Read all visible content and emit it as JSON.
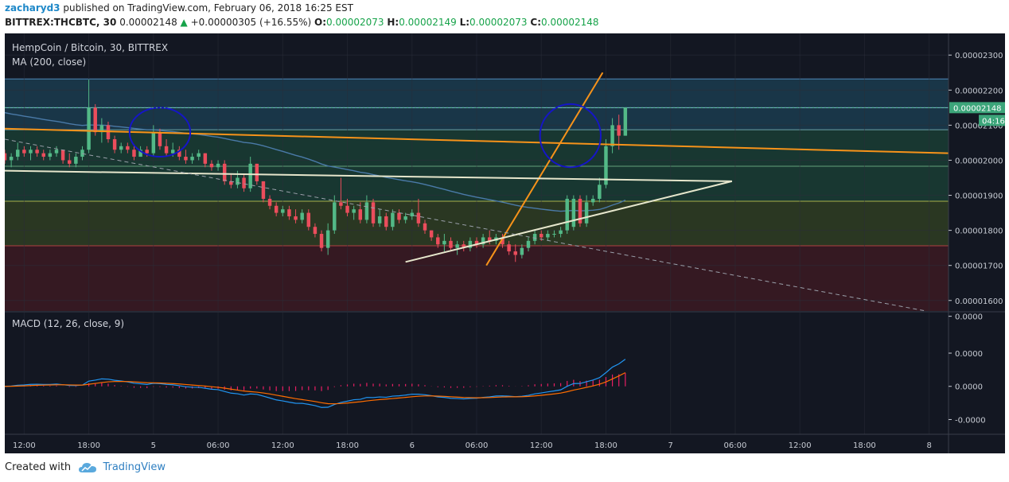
{
  "header": {
    "author": "zacharyd3",
    "published_text": "published on TradingView.com, February 06, 2018 16:25 EST",
    "symbol": "BITTREX:THCBTC, 30",
    "last": "0.00002148",
    "change": "+0.00000305 (+16.55%)",
    "o_label": "O:",
    "o_value": "0.00002073",
    "h_label": "H:",
    "h_value": "0.00002149",
    "l_label": "L:",
    "l_value": "0.00002073",
    "c_label": "C:",
    "c_value": "0.00002148"
  },
  "footer": {
    "created_with": "Created with",
    "brand": "TradingView"
  },
  "colors": {
    "bg": "#131722",
    "up": "#53b987",
    "down": "#eb4d5c",
    "ma": "#4a7aa8",
    "orange": "#f7931a",
    "white_line": "#e6e6cc",
    "circle": "#1515c8",
    "macd": "#2196f3",
    "signal": "#ff6d00",
    "hist": "#e91e63",
    "fib_top": "#1b3a4d",
    "fib_mid": "#1a3b33",
    "fib_low": "#2e3b22",
    "fib_red": "#3a1a22"
  },
  "chart_data": {
    "type": "candlestick",
    "title": "HempCoin / Bitcoin, 30, BITTREX",
    "indicator_label": "MA (200, close)",
    "macd_label": "MACD (12, 26, close, 9)",
    "last_price_label": "0.00002148",
    "countdown_label": "04:16",
    "price_axis": {
      "ylim": [
        1.57e-05,
        2.33e-05
      ],
      "ticks": [
        {
          "value": 2.3e-05,
          "label": "0.00002300"
        },
        {
          "value": 2.2e-05,
          "label": "0.00002200"
        },
        {
          "value": 2.1e-05,
          "label": "0.00002100"
        },
        {
          "value": 2e-05,
          "label": "0.00002000"
        },
        {
          "value": 1.9e-05,
          "label": "0.00001900"
        },
        {
          "value": 1.8e-05,
          "label": "0.00001800"
        },
        {
          "value": 1.7e-05,
          "label": "0.00001700"
        },
        {
          "value": 1.6e-05,
          "label": "0.00001600"
        }
      ]
    },
    "macd_axis": {
      "ylim": [
        -1.3e-06,
        2e-06
      ],
      "ticks": [
        {
          "value": 1.9e-06,
          "label": "0.0000"
        },
        {
          "value": 9e-07,
          "label": "0.0000"
        },
        {
          "value": 0.0,
          "label": "0.0000"
        },
        {
          "value": -9e-07,
          "label": "-0.0000"
        }
      ]
    },
    "time_axis": {
      "xlim": [
        0,
        146
      ],
      "ticks": [
        {
          "index": 3,
          "label": "12:00"
        },
        {
          "index": 13,
          "label": "18:00"
        },
        {
          "index": 23,
          "label": "5"
        },
        {
          "index": 33,
          "label": "06:00"
        },
        {
          "index": 43,
          "label": "12:00"
        },
        {
          "index": 53,
          "label": "18:00"
        },
        {
          "index": 63,
          "label": "6"
        },
        {
          "index": 73,
          "label": "06:00"
        },
        {
          "index": 83,
          "label": "12:00"
        },
        {
          "index": 93,
          "label": "18:00"
        },
        {
          "index": 103,
          "label": "7"
        },
        {
          "index": 113,
          "label": "06:00"
        },
        {
          "index": 123,
          "label": "12:00"
        },
        {
          "index": 133,
          "label": "18:00"
        },
        {
          "index": 143,
          "label": "8"
        }
      ]
    },
    "fib_levels": [
      {
        "value": 2.232e-05,
        "color": "#4f87b8"
      },
      {
        "value": 2.15e-05,
        "color": "#7cc0d0"
      },
      {
        "value": 2.087e-05,
        "color": "#6ca0a8"
      },
      {
        "value": 1.983e-05,
        "color": "#64a07a"
      },
      {
        "value": 1.883e-05,
        "color": "#a8b04a"
      },
      {
        "value": 1.756e-05,
        "color": "#b04040"
      }
    ],
    "trendlines": [
      {
        "name": "orange-resistance",
        "color": "#f7931a",
        "from": [
          0,
          2.09e-05
        ],
        "to": [
          146,
          2.02e-05
        ]
      },
      {
        "name": "orange-breakout",
        "color": "#f7931a",
        "from": [
          74.5,
          1.7e-05
        ],
        "to": [
          92.5,
          2.25e-05
        ]
      },
      {
        "name": "white-horizontal",
        "color": "#e6e6cc",
        "from": [
          0,
          1.97e-05
        ],
        "to": [
          112.5,
          1.94e-05
        ]
      },
      {
        "name": "white-support",
        "color": "#e6e6cc",
        "from": [
          62,
          1.71e-05
        ],
        "to": [
          112.5,
          1.94e-05
        ]
      },
      {
        "name": "dashed-downtrend",
        "color": "#9aa0aa",
        "from": [
          0,
          2.06e-05
        ],
        "to": [
          142.5,
          1.57e-05
        ]
      }
    ],
    "circles": [
      {
        "cx": 24,
        "cy": 2.08e-05,
        "rx": 4.7,
        "ry": 7e-07
      },
      {
        "cx": 87.5,
        "cy": 2.07e-05,
        "rx": 4.7,
        "ry": 9e-07
      }
    ],
    "candles": [
      [
        2.02e-05,
        2.03e-05,
        1.99e-05,
        2e-05
      ],
      [
        2e-05,
        2.02e-05,
        1.98e-05,
        2.01e-05
      ],
      [
        2.01e-05,
        2.05e-05,
        2e-05,
        2.03e-05
      ],
      [
        2.03e-05,
        2.04e-05,
        2.01e-05,
        2.02e-05
      ],
      [
        2.02e-05,
        2.04e-05,
        2e-05,
        2.03e-05
      ],
      [
        2.03e-05,
        2.04e-05,
        2.01e-05,
        2.02e-05
      ],
      [
        2.02e-05,
        2.03e-05,
        2e-05,
        2.01e-05
      ],
      [
        2.01e-05,
        2.03e-05,
        2e-05,
        2.02e-05
      ],
      [
        2.02e-05,
        2.04e-05,
        2.01e-05,
        2.03e-05
      ],
      [
        2.03e-05,
        2.03e-05,
        1.99e-05,
        2e-05
      ],
      [
        2e-05,
        2.02e-05,
        1.98e-05,
        1.99e-05
      ],
      [
        1.99e-05,
        2.02e-05,
        1.98e-05,
        2.01e-05
      ],
      [
        2.01e-05,
        2.04e-05,
        2e-05,
        2.03e-05
      ],
      [
        2.03e-05,
        2.23e-05,
        2.02e-05,
        2.15e-05
      ],
      [
        2.15e-05,
        2.16e-05,
        2.07e-05,
        2.08e-05
      ],
      [
        2.08e-05,
        2.12e-05,
        2.05e-05,
        2.1e-05
      ],
      [
        2.1e-05,
        2.11e-05,
        2.05e-05,
        2.06e-05
      ],
      [
        2.06e-05,
        2.07e-05,
        2.02e-05,
        2.03e-05
      ],
      [
        2.03e-05,
        2.05e-05,
        2.02e-05,
        2.04e-05
      ],
      [
        2.04e-05,
        2.05e-05,
        2.02e-05,
        2.03e-05
      ],
      [
        2.03e-05,
        2.04e-05,
        2e-05,
        2.01e-05
      ],
      [
        2.01e-05,
        2.04e-05,
        2.01e-05,
        2.03e-05
      ],
      [
        2.03e-05,
        2.04e-05,
        2.01e-05,
        2.02e-05
      ],
      [
        2.02e-05,
        2.1e-05,
        2.01e-05,
        2.08e-05
      ],
      [
        2.08e-05,
        2.09e-05,
        2.03e-05,
        2.04e-05
      ],
      [
        2.04e-05,
        2.06e-05,
        2.01e-05,
        2.02e-05
      ],
      [
        2.02e-05,
        2.05e-05,
        2.01e-05,
        2.03e-05
      ],
      [
        2.03e-05,
        2.04e-05,
        2e-05,
        2.01e-05
      ],
      [
        2.01e-05,
        2.03e-05,
        1.99e-05,
        2e-05
      ],
      [
        2e-05,
        2.02e-05,
        1.99e-05,
        2.01e-05
      ],
      [
        2.01e-05,
        2.03e-05,
        2e-05,
        2.02e-05
      ],
      [
        2.02e-05,
        2.02e-05,
        1.98e-05,
        1.99e-05
      ],
      [
        1.99e-05,
        2e-05,
        1.97e-05,
        1.98e-05
      ],
      [
        1.98e-05,
        2e-05,
        1.97e-05,
        1.99e-05
      ],
      [
        1.99e-05,
        2e-05,
        1.93e-05,
        1.94e-05
      ],
      [
        1.94e-05,
        1.96e-05,
        1.92e-05,
        1.93e-05
      ],
      [
        1.93e-05,
        1.97e-05,
        1.92e-05,
        1.95e-05
      ],
      [
        1.95e-05,
        1.96e-05,
        1.91e-05,
        1.92e-05
      ],
      [
        1.92e-05,
        2.01e-05,
        1.91e-05,
        1.99e-05
      ],
      [
        1.99e-05,
        1.99e-05,
        1.93e-05,
        1.94e-05
      ],
      [
        1.94e-05,
        1.94e-05,
        1.88e-05,
        1.89e-05
      ],
      [
        1.89e-05,
        1.9e-05,
        1.86e-05,
        1.87e-05
      ],
      [
        1.87e-05,
        1.88e-05,
        1.84e-05,
        1.85e-05
      ],
      [
        1.85e-05,
        1.87e-05,
        1.84e-05,
        1.86e-05
      ],
      [
        1.86e-05,
        1.87e-05,
        1.83e-05,
        1.84e-05
      ],
      [
        1.84e-05,
        1.86e-05,
        1.82e-05,
        1.83e-05
      ],
      [
        1.83e-05,
        1.86e-05,
        1.82e-05,
        1.85e-05
      ],
      [
        1.85e-05,
        1.86e-05,
        1.8e-05,
        1.81e-05
      ],
      [
        1.81e-05,
        1.82e-05,
        1.78e-05,
        1.79e-05
      ],
      [
        1.79e-05,
        1.8e-05,
        1.74e-05,
        1.75e-05
      ],
      [
        1.75e-05,
        1.82e-05,
        1.73e-05,
        1.8e-05
      ],
      [
        1.8e-05,
        1.9e-05,
        1.79e-05,
        1.88e-05
      ],
      [
        1.88e-05,
        1.95e-05,
        1.86e-05,
        1.87e-05
      ],
      [
        1.87e-05,
        1.89e-05,
        1.84e-05,
        1.85e-05
      ],
      [
        1.85e-05,
        1.87e-05,
        1.83e-05,
        1.86e-05
      ],
      [
        1.86e-05,
        1.88e-05,
        1.82e-05,
        1.83e-05
      ],
      [
        1.83e-05,
        1.9e-05,
        1.82e-05,
        1.88e-05
      ],
      [
        1.88e-05,
        1.89e-05,
        1.81e-05,
        1.82e-05
      ],
      [
        1.82e-05,
        1.86e-05,
        1.81e-05,
        1.84e-05
      ],
      [
        1.84e-05,
        1.85e-05,
        1.8e-05,
        1.81e-05
      ],
      [
        1.81e-05,
        1.86e-05,
        1.8e-05,
        1.85e-05
      ],
      [
        1.85e-05,
        1.86e-05,
        1.82e-05,
        1.83e-05
      ],
      [
        1.83e-05,
        1.85e-05,
        1.82e-05,
        1.84e-05
      ],
      [
        1.84e-05,
        1.86e-05,
        1.83e-05,
        1.85e-05
      ],
      [
        1.85e-05,
        1.89e-05,
        1.81e-05,
        1.82e-05
      ],
      [
        1.82e-05,
        1.83e-05,
        1.79e-05,
        1.8e-05
      ],
      [
        1.8e-05,
        1.8e-05,
        1.77e-05,
        1.78e-05
      ],
      [
        1.78e-05,
        1.79e-05,
        1.75e-05,
        1.76e-05
      ],
      [
        1.76e-05,
        1.79e-05,
        1.74e-05,
        1.77e-05
      ],
      [
        1.77e-05,
        1.78e-05,
        1.74e-05,
        1.75e-05
      ],
      [
        1.75e-05,
        1.77e-05,
        1.73e-05,
        1.76e-05
      ],
      [
        1.76e-05,
        1.77e-05,
        1.74e-05,
        1.75e-05
      ],
      [
        1.75e-05,
        1.78e-05,
        1.74e-05,
        1.77e-05
      ],
      [
        1.77e-05,
        1.78e-05,
        1.75e-05,
        1.76e-05
      ],
      [
        1.76e-05,
        1.79e-05,
        1.75e-05,
        1.78e-05
      ],
      [
        1.78e-05,
        1.8e-05,
        1.76e-05,
        1.77e-05
      ],
      [
        1.77e-05,
        1.79e-05,
        1.76e-05,
        1.78e-05
      ],
      [
        1.78e-05,
        1.79e-05,
        1.75e-05,
        1.76e-05
      ],
      [
        1.76e-05,
        1.77e-05,
        1.73e-05,
        1.74e-05
      ],
      [
        1.74e-05,
        1.76e-05,
        1.71e-05,
        1.73e-05
      ],
      [
        1.73e-05,
        1.76e-05,
        1.72e-05,
        1.75e-05
      ],
      [
        1.75e-05,
        1.78e-05,
        1.74e-05,
        1.77e-05
      ],
      [
        1.77e-05,
        1.8e-05,
        1.76e-05,
        1.79e-05
      ],
      [
        1.79e-05,
        1.8e-05,
        1.77e-05,
        1.78e-05
      ],
      [
        1.78e-05,
        1.8e-05,
        1.77e-05,
        1.79e-05
      ],
      [
        1.79e-05,
        1.8e-05,
        1.78e-05,
        1.79e-05
      ],
      [
        1.79e-05,
        1.81e-05,
        1.78e-05,
        1.8e-05
      ],
      [
        1.8e-05,
        1.9e-05,
        1.79e-05,
        1.89e-05
      ],
      [
        1.81e-05,
        1.9e-05,
        1.8e-05,
        1.89e-05
      ],
      [
        1.89e-05,
        1.9e-05,
        1.81e-05,
        1.82e-05
      ],
      [
        1.82e-05,
        1.9e-05,
        1.81e-05,
        1.88e-05
      ],
      [
        1.88e-05,
        1.9e-05,
        1.87e-05,
        1.89e-05
      ],
      [
        1.89e-05,
        1.95e-05,
        1.88e-05,
        1.93e-05
      ],
      [
        1.93e-05,
        2.06e-05,
        1.92e-05,
        2.04e-05
      ],
      [
        2.04e-05,
        2.12e-05,
        2.02e-05,
        2.1e-05
      ],
      [
        2.1e-05,
        2.13e-05,
        2.03e-05,
        2.07e-05
      ],
      [
        2.07e-05,
        2.15e-05,
        2.07e-05,
        2.15e-05
      ]
    ]
  }
}
